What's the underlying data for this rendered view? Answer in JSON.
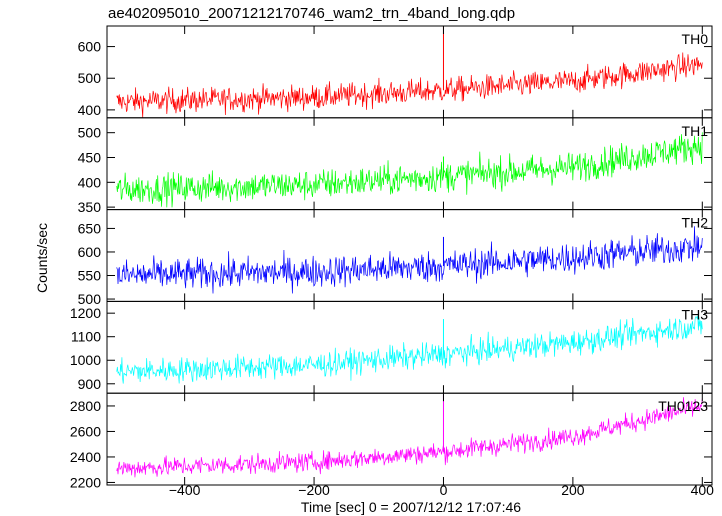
{
  "chart_data": {
    "type": "line",
    "title": "ae402095010_20071212170746_wam2_trn_4band_long.qdp",
    "xlabel": "Time [sec] 0 = 2007/12/12 17:07:46",
    "ylabel": "Counts/sec",
    "xlim": [
      -520,
      415
    ],
    "x_ticks": [
      -400,
      -200,
      0,
      200,
      400
    ],
    "x_tick_labels": [
      "−400",
      "−200",
      "0",
      "200",
      "400"
    ],
    "x_range_data": [
      -505,
      400
    ],
    "grid": false,
    "panels": [
      {
        "name": "TH0",
        "color": "#ff0000",
        "ylim": [
          375,
          665
        ],
        "y_ticks": [
          400,
          500,
          600
        ],
        "trend": [
          [
            -505,
            425
          ],
          [
            -200,
            440
          ],
          [
            0,
            462
          ],
          [
            200,
            490
          ],
          [
            400,
            545
          ]
        ],
        "noise": 28,
        "spike": {
          "x": 0,
          "y": 665
        }
      },
      {
        "name": "TH1",
        "color": "#00ff00",
        "ylim": [
          345,
          530
        ],
        "y_ticks": [
          350,
          400,
          450,
          500
        ],
        "trend": [
          [
            -505,
            385
          ],
          [
            -200,
            395
          ],
          [
            0,
            412
          ],
          [
            200,
            430
          ],
          [
            400,
            475
          ]
        ],
        "noise": 22,
        "spike": {
          "x": 0,
          "y": 452
        }
      },
      {
        "name": "TH2",
        "color": "#0000ff",
        "ylim": [
          495,
          690
        ],
        "y_ticks": [
          500,
          550,
          600,
          650
        ],
        "trend": [
          [
            -505,
            550
          ],
          [
            -200,
            558
          ],
          [
            0,
            570
          ],
          [
            200,
            588
          ],
          [
            400,
            612
          ]
        ],
        "noise": 24,
        "spike": {
          "x": 0,
          "y": 632
        }
      },
      {
        "name": "TH3",
        "color": "#00ffff",
        "ylim": [
          860,
          1250
        ],
        "y_ticks": [
          900,
          1000,
          1100,
          1200
        ],
        "trend": [
          [
            -505,
            950
          ],
          [
            -200,
            980
          ],
          [
            0,
            1025
          ],
          [
            200,
            1075
          ],
          [
            400,
            1150
          ]
        ],
        "noise": 38,
        "spike": {
          "x": 0,
          "y": 1175
        }
      },
      {
        "name": "TH0123",
        "color": "#ff00ff",
        "ylim": [
          2180,
          2900
        ],
        "y_ticks": [
          2200,
          2400,
          2600,
          2800
        ],
        "trend": [
          [
            -505,
            2310
          ],
          [
            -200,
            2360
          ],
          [
            0,
            2440
          ],
          [
            200,
            2560
          ],
          [
            400,
            2800
          ]
        ],
        "noise": 55,
        "spike": {
          "x": 0,
          "y": 2890
        }
      }
    ]
  }
}
